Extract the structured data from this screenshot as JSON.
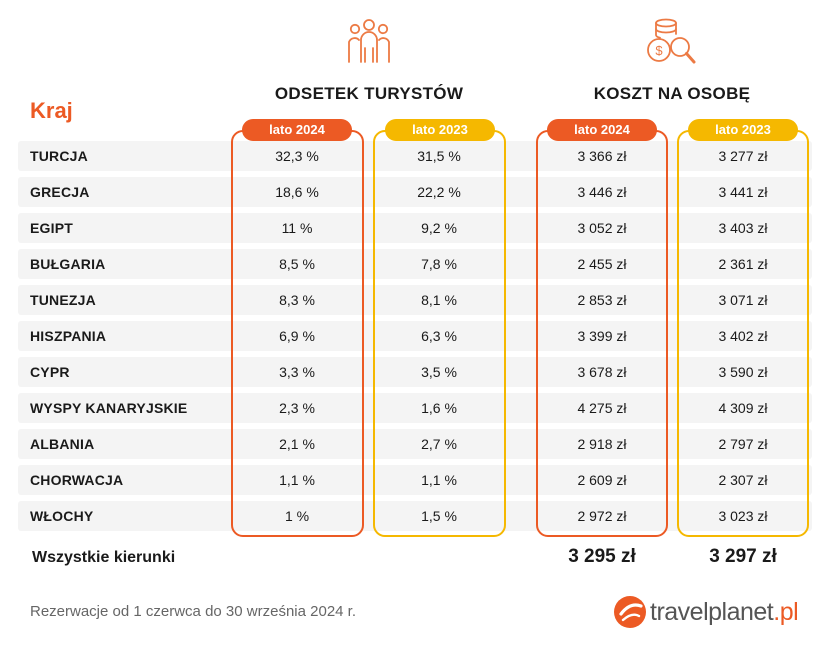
{
  "colors": {
    "accent_2024": "#ec5a24",
    "accent_2023": "#f5b800",
    "row_stripe": "#f4f4f4"
  },
  "icons": {
    "tourists": "people-group-icon",
    "cost": "coins-magnifier-icon",
    "logo_mark": "travelplanet-swoosh-icon"
  },
  "header": {
    "country_label": "Kraj",
    "share_title": "ODSETEK TURYSTÓW",
    "cost_title": "KOSZT NA OSOBĘ"
  },
  "pills": {
    "share_2024": "lato 2024",
    "share_2023": "lato 2023",
    "cost_2024": "lato 2024",
    "cost_2023": "lato 2023"
  },
  "chart_data": {
    "type": "table",
    "columns": [
      "Kraj",
      "Odsetek turystów lato 2024",
      "Odsetek turystów lato 2023",
      "Koszt na osobę lato 2024",
      "Koszt na osobę lato 2023"
    ],
    "rows": [
      {
        "country": "TURCJA",
        "share_2024": "32,3 %",
        "share_2023": "31,5 %",
        "cost_2024": "3 366 zł",
        "cost_2023": "3 277 zł"
      },
      {
        "country": "GRECJA",
        "share_2024": "18,6 %",
        "share_2023": "22,2 %",
        "cost_2024": "3 446 zł",
        "cost_2023": "3 441 zł"
      },
      {
        "country": "EGIPT",
        "share_2024": "11 %",
        "share_2023": "9,2 %",
        "cost_2024": "3 052 zł",
        "cost_2023": "3 403 zł"
      },
      {
        "country": "BUŁGARIA",
        "share_2024": "8,5 %",
        "share_2023": "7,8 %",
        "cost_2024": "2 455 zł",
        "cost_2023": "2 361 zł"
      },
      {
        "country": "TUNEZJA",
        "share_2024": "8,3 %",
        "share_2023": "8,1 %",
        "cost_2024": "2 853 zł",
        "cost_2023": "3 071 zł"
      },
      {
        "country": "HISZPANIA",
        "share_2024": "6,9 %",
        "share_2023": "6,3 %",
        "cost_2024": "3 399 zł",
        "cost_2023": "3 402 zł"
      },
      {
        "country": "CYPR",
        "share_2024": "3,3 %",
        "share_2023": "3,5 %",
        "cost_2024": "3 678 zł",
        "cost_2023": "3 590 zł"
      },
      {
        "country": "WYSPY KANARYJSKIE",
        "share_2024": "2,3 %",
        "share_2023": "1,6 %",
        "cost_2024": "4 275 zł",
        "cost_2023": "4 309 zł"
      },
      {
        "country": "ALBANIA",
        "share_2024": "2,1 %",
        "share_2023": "2,7 %",
        "cost_2024": "2 918 zł",
        "cost_2023": "2 797 zł"
      },
      {
        "country": "CHORWACJA",
        "share_2024": "1,1 %",
        "share_2023": "1,1 %",
        "cost_2024": "2 609 zł",
        "cost_2023": "2 307 zł"
      },
      {
        "country": "WŁOCHY",
        "share_2024": "1 %",
        "share_2023": "1,5 %",
        "cost_2024": "2 972 zł",
        "cost_2023": "3 023 zł"
      }
    ],
    "totals": {
      "label": "Wszystkie kierunki",
      "cost_2024": "3 295 zł",
      "cost_2023": "3 297 zł"
    }
  },
  "footnote": "Rezerwacje od 1 czerwca do 30 września 2024 r.",
  "logo": {
    "text_main": "travelplanet",
    "text_tld": ".pl"
  }
}
